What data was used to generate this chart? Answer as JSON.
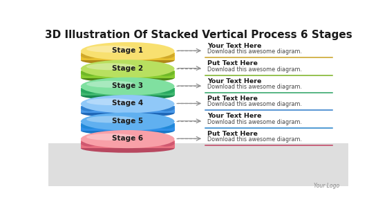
{
  "title": "3D Illustration Of Stacked Vertical Process 6 Stages",
  "title_fontsize": 11,
  "background_color": "#f5f5f5",
  "stages": [
    "Stage 1",
    "Stage 2",
    "Stage 3",
    "Stage 4",
    "Stage 5",
    "Stage 6"
  ],
  "ellipse_colors_light": [
    "#f8e070",
    "#b8e060",
    "#80e0a0",
    "#90c8f8",
    "#60b0f0",
    "#f8a0a8"
  ],
  "ellipse_colors_mid": [
    "#e8c030",
    "#88cc30",
    "#40b870",
    "#4898e8",
    "#3090e8",
    "#e87080"
  ],
  "ellipse_colors_dark": [
    "#b08818",
    "#508818",
    "#188850",
    "#2068b8",
    "#1878c8",
    "#b84860"
  ],
  "ellipse_colors_side": [
    "#d0a828",
    "#70b828",
    "#28a860",
    "#3080d0",
    "#2088d8",
    "#d05870"
  ],
  "text_headers": [
    "Your Text Here",
    "Put Text Here",
    "Your Text Here",
    "Put Text Here",
    "Your Text Here",
    "Put Text Here"
  ],
  "text_sub": "Download this awesome diagram.",
  "line_colors": [
    "#c8a020",
    "#78b020",
    "#28a060",
    "#2878c8",
    "#2080c8",
    "#c04060"
  ],
  "arrow_color": "#909090",
  "stage_label_color": "#1a1a1a",
  "logo_text": "Your Logo",
  "footer_bg_color": "#dedede",
  "white_bg": "#ffffff"
}
